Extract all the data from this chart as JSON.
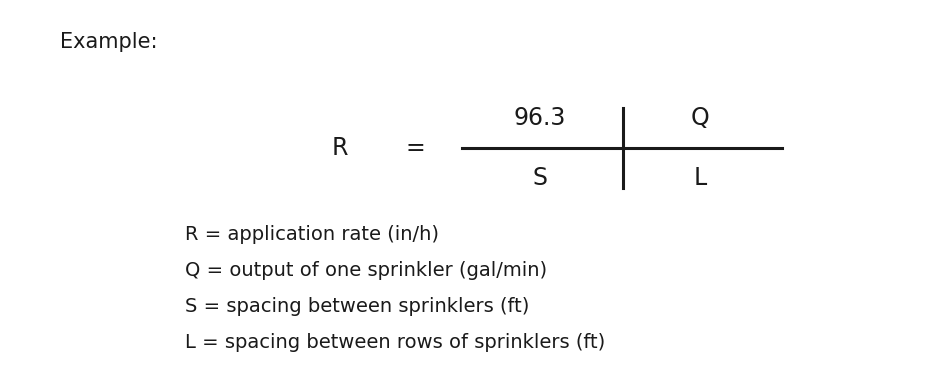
{
  "background_color": "#ffffff",
  "example_label": "Example:",
  "example_fontsize": 15,
  "formula_fontsize": 17,
  "def_fontsize": 14,
  "font_color": "#1a1a1a",
  "line_width": 2.2,
  "R_label": "R",
  "eq_label": "=",
  "num_left": "96.3",
  "num_right": "Q",
  "den_left": "S",
  "den_right": "L",
  "definitions": [
    "R = application rate (in/h)",
    "Q = output of one sprinkler (gal/min)",
    "S = spacing between sprinklers (ft)",
    "L = spacing between rows of sprinklers (ft)"
  ]
}
